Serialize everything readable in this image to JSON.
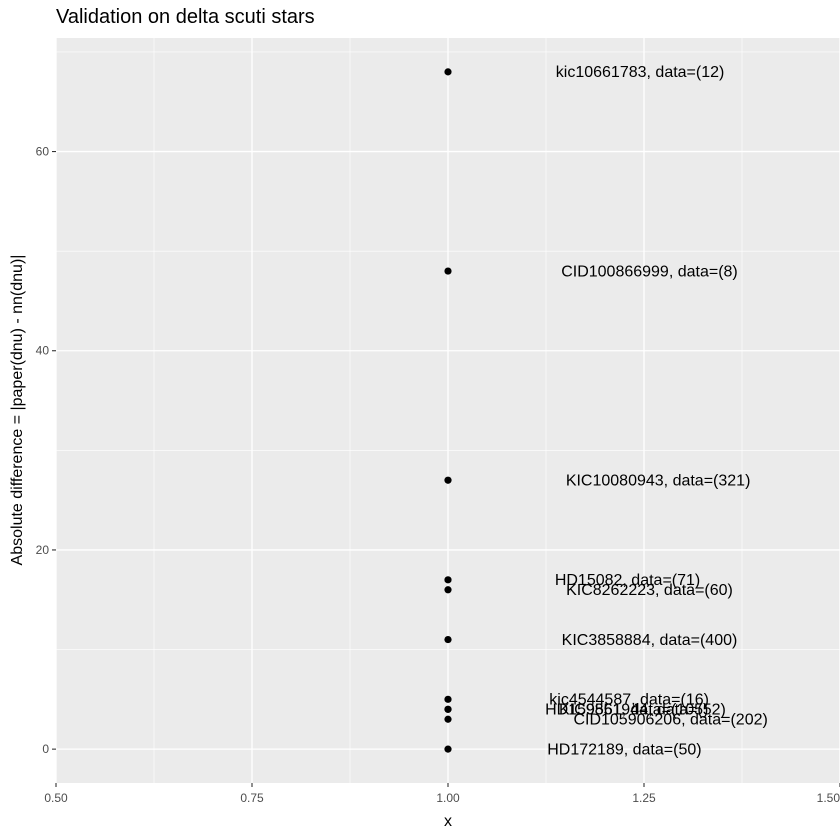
{
  "chart_data": {
    "type": "scatter",
    "title": "Validation on delta scuti stars",
    "xlabel": "x",
    "ylabel": "Absolute difference = |paper(dnu) - nn(dnu)|",
    "xlim": [
      0.5,
      1.5
    ],
    "ylim": [
      -3.4,
      71.4
    ],
    "x_ticks": [
      0.5,
      0.75,
      1.0,
      1.25,
      1.5
    ],
    "x_tick_labels": [
      "0.50",
      "0.75",
      "1.00",
      "1.25",
      "1.50"
    ],
    "y_ticks": [
      0,
      20,
      40,
      60
    ],
    "y_tick_labels": [
      "0",
      "20",
      "40",
      "60"
    ],
    "grid": true,
    "legend": "none",
    "colors": {
      "panel": "#ebebeb",
      "grid": "#ffffff",
      "point": "#000000"
    },
    "points": [
      {
        "x": 1.0,
        "y": 68,
        "label": "kic10661783, data=(12)",
        "label_x": 1.245
      },
      {
        "x": 1.0,
        "y": 48,
        "label": "CID100866999, data=(8)",
        "label_x": 1.257
      },
      {
        "x": 1.0,
        "y": 27,
        "label": "KIC10080943, data=(321)",
        "label_x": 1.268
      },
      {
        "x": 1.0,
        "y": 17,
        "label": "HD15082, data=(71)",
        "label_x": 1.229
      },
      {
        "x": 1.0,
        "y": 16,
        "label": "KIC8262223, data=(60)",
        "label_x": 1.257
      },
      {
        "x": 1.0,
        "y": 11,
        "label": "KIC3858884, data=(400)",
        "label_x": 1.257
      },
      {
        "x": 1.0,
        "y": 5,
        "label": "kic4544587, data=(16)",
        "label_x": 1.231
      },
      {
        "x": 1.0,
        "y": 4,
        "label": "KIC9851944, data=(52)",
        "label_x": 1.248
      },
      {
        "x": 1.0,
        "y": 4,
        "label": "HD159561, data=(105)",
        "label_x": 1.228
      },
      {
        "x": 1.0,
        "y": 3,
        "label": "CID105906206, data=(202)",
        "label_x": 1.284
      },
      {
        "x": 1.0,
        "y": 0,
        "label": "HD172189, data=(50)",
        "label_x": 1.225
      }
    ]
  }
}
